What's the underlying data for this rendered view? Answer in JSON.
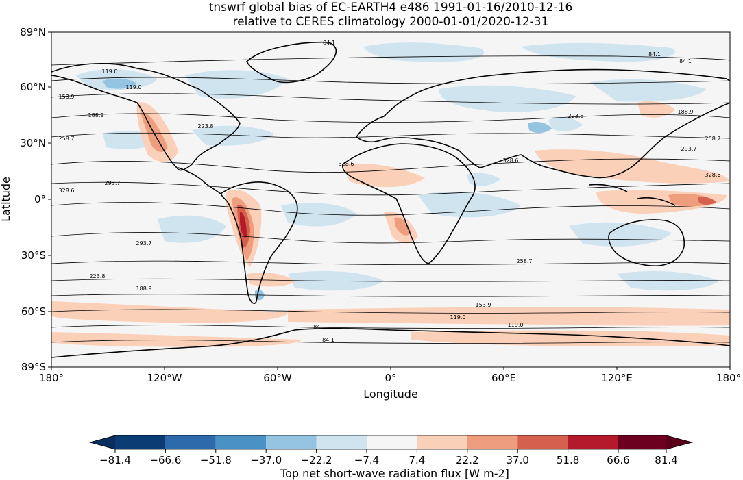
{
  "figure": {
    "title_line1": "tnswrf global bias of EC-EARTH4 e486 1991-01-16/2010-12-16",
    "title_line2": "relative to CERES climatology 2000-01-01/2020-12-31",
    "xlabel": "Longitude",
    "ylabel": "Latitude",
    "x_ticks": [
      "180°",
      "120°W",
      "60°W",
      "0°",
      "60°E",
      "120°E",
      "180°"
    ],
    "y_ticks": [
      "89°N",
      "60°N",
      "30°N",
      "0°",
      "30°S",
      "60°S",
      "89°S"
    ]
  },
  "colorbar": {
    "label": "Top net short-wave radiation flux [W m-2]",
    "ticks": [
      "−81.4",
      "−66.6",
      "−51.8",
      "−37.0",
      "−22.2",
      "−7.4",
      "7.4",
      "22.2",
      "37.0",
      "51.8",
      "66.6",
      "81.4"
    ],
    "colors": [
      "#0b3c74",
      "#2c6aac",
      "#4a92c6",
      "#94c4df",
      "#d0e4f0",
      "#f5f5f5",
      "#fbd0b9",
      "#ef9d7f",
      "#d5604d",
      "#b41a2b",
      "#6c0021"
    ],
    "extend_low": "#0a2e5e",
    "extend_high": "#5a0019"
  },
  "contours": {
    "color": "#000000",
    "labels": [
      {
        "value": "84.1"
      },
      {
        "value": "84.1"
      },
      {
        "value": "84.1"
      },
      {
        "value": "119.0"
      },
      {
        "value": "119.0"
      },
      {
        "value": "153.9"
      },
      {
        "value": "188.9"
      },
      {
        "value": "188.9"
      },
      {
        "value": "223.8"
      },
      {
        "value": "223.8"
      },
      {
        "value": "258.7"
      },
      {
        "value": "258.7"
      },
      {
        "value": "293.7"
      },
      {
        "value": "293.7"
      },
      {
        "value": "328.6"
      },
      {
        "value": "328.6"
      },
      {
        "value": "328.6"
      },
      {
        "value": "328.6"
      },
      {
        "value": "293.7"
      },
      {
        "value": "258.7"
      },
      {
        "value": "223.8"
      },
      {
        "value": "188.9"
      },
      {
        "value": "153.9"
      },
      {
        "value": "119.0"
      },
      {
        "value": "119.0"
      },
      {
        "value": "84.1"
      },
      {
        "value": "84.1"
      }
    ]
  }
}
